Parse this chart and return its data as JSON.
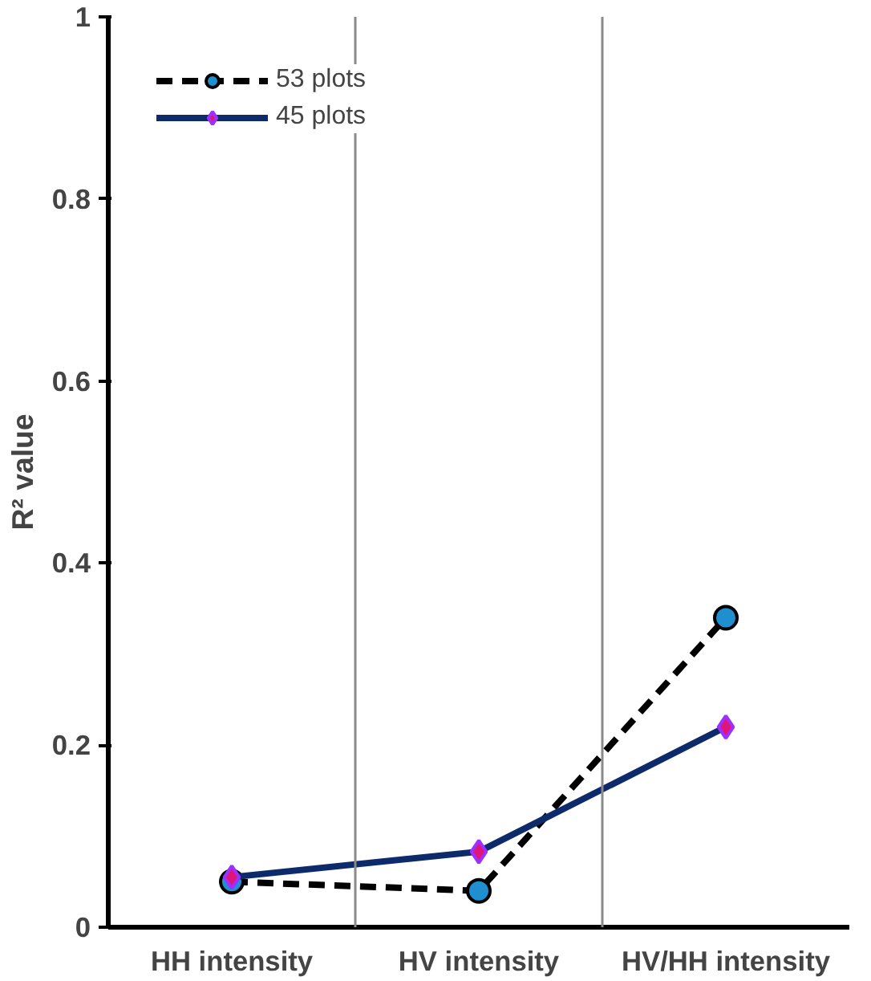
{
  "chart_data": {
    "type": "line",
    "ylabel": "R² value",
    "categories": [
      "HH intensity",
      "HV intensity",
      "HV/HH intensity"
    ],
    "series": [
      {
        "name": "53 plots",
        "color": "#000000",
        "values": [
          0.05,
          0.04,
          0.34
        ],
        "marker": "circle",
        "line_style": "dashed"
      },
      {
        "name": "45 plots",
        "color": "#0d2a6b",
        "values": [
          0.055,
          0.083,
          0.22
        ],
        "marker": "diamond",
        "line_style": "solid"
      }
    ],
    "ylim": [
      0,
      1
    ],
    "yticks": [
      0,
      0.2,
      0.4,
      0.6,
      0.8,
      1
    ],
    "grid": "x",
    "legend": "top left"
  }
}
